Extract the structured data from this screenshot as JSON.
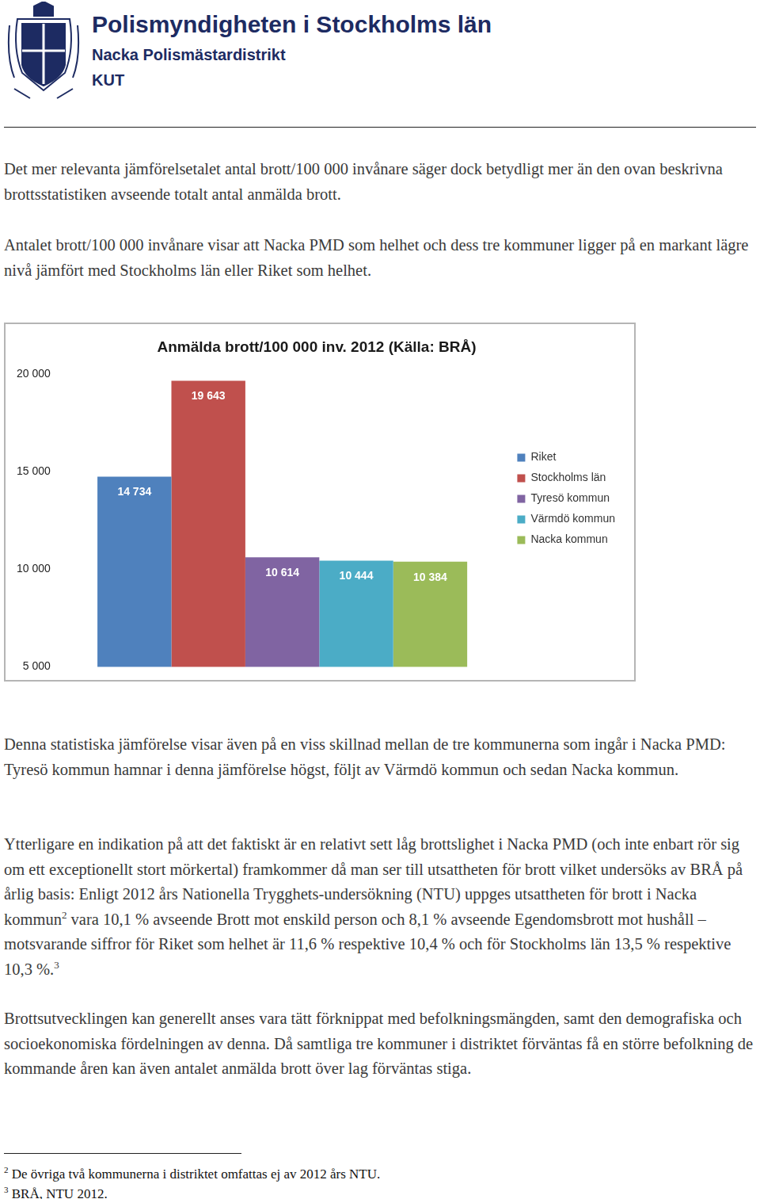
{
  "header": {
    "title": "Polismyndigheten i Stockholms län",
    "subtitle": "Nacka Polismästardistrikt",
    "unit": "KUT"
  },
  "paragraphs": [
    [
      {
        "text": "Det mer relevanta jämförelsetalet antal brott/100 000 invånare säger dock betydligt mer än den ovan beskrivna brottsstatistiken avseende totalt antal anmälda brott."
      }
    ],
    [
      {
        "text": "Antalet brott/100 000 invånare visar att Nacka PMD som helhet och dess tre kommuner ligger på en markant lägre nivå jämfört med Stockholms län eller Riket som helhet."
      }
    ],
    [
      {
        "text": "Denna statistiska jämförelse visar även på en viss skillnad mellan de tre kommunerna som ingår i Nacka PMD: Tyresö kommun hamnar i denna jämförelse högst, följt av Värmdö kommun och sedan Nacka kommun."
      }
    ],
    [
      {
        "text": "Ytterligare en indikation på att det faktiskt är en relativt sett låg brottslighet i Nacka PMD (och inte enbart rör sig om ett exceptionellt stort mörkertal) framkommer då man ser till utsattheten för brott vilket undersöks av BRÅ på årlig basis: Enligt 2012 års Nationella Trygghets-undersökning (NTU) uppges utsattheten för brott i Nacka kommun"
      },
      {
        "sup": "2"
      },
      {
        "text": " vara 10,1 % avseende Brott mot enskild person och 8,1 % avseende Egendomsbrott mot hushåll – motsvarande siffror för Riket som helhet är 11,6 % respektive 10,4 % och för Stockholms län 13,5 % respektive 10,3 %."
      },
      {
        "sup": "3"
      }
    ],
    [
      {
        "text": "Brottsutvecklingen kan generellt anses vara tätt förknippat med befolkningsmängden, samt den demografiska och socioekonomiska fördelningen av denna. Då samtliga tre kommuner i distriktet förväntas få en större befolkning de kommande åren kan även antalet anmälda brott över lag förväntas stiga."
      }
    ]
  ],
  "chart_data": {
    "type": "bar",
    "title": "Anmälda brott/100 000 inv. 2012 (Källa: BRÅ)",
    "categories": [
      null
    ],
    "series": [
      {
        "name": "Riket",
        "color": "#4f81bd",
        "values": [
          14734
        ],
        "value_labels": [
          "14 734"
        ]
      },
      {
        "name": "Stockholms län",
        "color": "#c0504d",
        "values": [
          19643
        ],
        "value_labels": [
          "19 643"
        ]
      },
      {
        "name": "Tyresö kommun",
        "color": "#8064a2",
        "values": [
          10614
        ],
        "value_labels": [
          "10 614"
        ]
      },
      {
        "name": "Värmdö kommun",
        "color": "#4bacc6",
        "values": [
          10444
        ],
        "value_labels": [
          "10 444"
        ]
      },
      {
        "name": "Nacka kommun",
        "color": "#9bbb59",
        "values": [
          10384
        ],
        "value_labels": [
          "10 384"
        ]
      }
    ],
    "ylim": [
      5000,
      20000
    ],
    "yticks": [
      {
        "value": 5000,
        "label": "5 000"
      },
      {
        "value": 10000,
        "label": "10 000"
      },
      {
        "value": 15000,
        "label": "15 000"
      },
      {
        "value": 20000,
        "label": "20 000"
      }
    ],
    "grid": false,
    "legend": "right",
    "data_labels": true,
    "tick_labels": "y"
  },
  "footnotes": [
    {
      "mark": "2",
      "text": "De övriga två kommunerna i distriktet omfattas ej av 2012 års NTU."
    },
    {
      "mark": "3",
      "text": "BRÅ, NTU 2012."
    }
  ]
}
